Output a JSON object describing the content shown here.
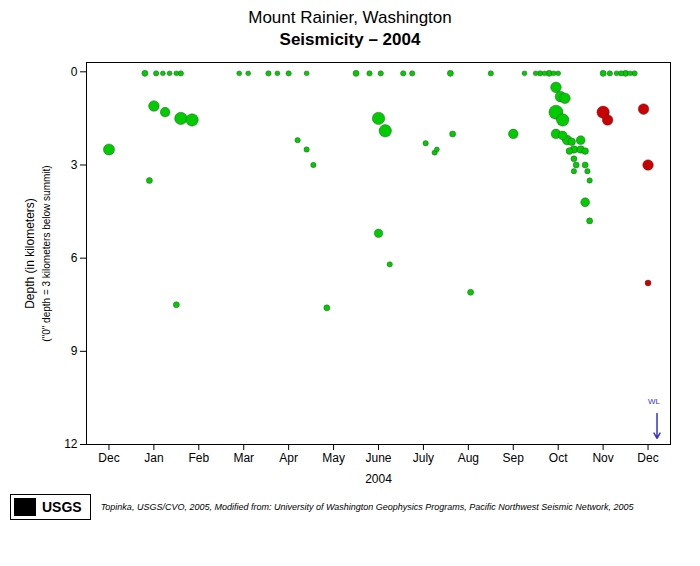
{
  "chart_data": {
    "type": "scatter",
    "title": "Mount Rainier, Washington",
    "subtitle": "Seismicity – 2004",
    "xlabel": "2004",
    "ylabel": [
      "Depth (in kilometers)",
      "(\"0\" depth = 3 kilometers below summit)"
    ],
    "caption": "Topinka, USGS/CVO, 2005, Modified from: University of Washington Geophysics Programs, Pacific Northwest Seismic Network, 2005",
    "xlim": [
      0,
      13
    ],
    "ylim": [
      12,
      -0.3
    ],
    "xticks": [
      {
        "value": 0.5,
        "label": "Dec"
      },
      {
        "value": 1.5,
        "label": "Jan"
      },
      {
        "value": 2.5,
        "label": "Feb"
      },
      {
        "value": 3.5,
        "label": "Mar"
      },
      {
        "value": 4.5,
        "label": "Apr"
      },
      {
        "value": 5.5,
        "label": "May"
      },
      {
        "value": 6.5,
        "label": "June"
      },
      {
        "value": 7.5,
        "label": "July"
      },
      {
        "value": 8.5,
        "label": "Aug"
      },
      {
        "value": 9.5,
        "label": "Sep"
      },
      {
        "value": 10.5,
        "label": "Oct"
      },
      {
        "value": 11.5,
        "label": "Nov"
      },
      {
        "value": 12.5,
        "label": "Dec"
      }
    ],
    "yticks": [
      0,
      3,
      6,
      9,
      12
    ],
    "grid": false,
    "series": [
      {
        "color": "#00CC00",
        "x": [
          0.5,
          1.3,
          1.55,
          1.7,
          1.85,
          2.0,
          2.1,
          1.5,
          1.75,
          2.1,
          2.35,
          1.4,
          2.0,
          3.4,
          3.6,
          4.05,
          4.25,
          4.5,
          4.9,
          4.7,
          4.9,
          5.05,
          5.35,
          6.0,
          6.3,
          6.55,
          6.5,
          6.65,
          6.5,
          6.75,
          7.05,
          7.25,
          7.55,
          7.75,
          7.8,
          8.1,
          8.15,
          8.55,
          9.0,
          9.5,
          9.75,
          10.0,
          10.1,
          10.2,
          10.3,
          10.4,
          10.5,
          10.45,
          10.55,
          10.65,
          10.45,
          10.6,
          10.45,
          10.6,
          10.7,
          10.8,
          10.85,
          10.75,
          10.85,
          10.9,
          10.85,
          11.0,
          11.0,
          11.1,
          11.1,
          11.15,
          11.2,
          11.1,
          11.2,
          11.5,
          11.65,
          11.8,
          11.9,
          12.0,
          12.1,
          12.2
        ],
        "y": [
          2.5,
          0.05,
          0.05,
          0.05,
          0.05,
          0.05,
          0.05,
          1.1,
          1.3,
          1.5,
          1.55,
          3.5,
          7.5,
          0.05,
          0.05,
          0.05,
          0.05,
          0.05,
          0.05,
          2.2,
          2.5,
          3.0,
          7.6,
          0.05,
          0.05,
          0.05,
          1.5,
          1.9,
          5.2,
          6.2,
          0.05,
          0.05,
          2.3,
          2.6,
          2.5,
          0.05,
          2.0,
          7.1,
          0.05,
          2.0,
          0.05,
          0.05,
          0.05,
          0.05,
          0.05,
          0.05,
          0.05,
          0.5,
          0.8,
          0.85,
          1.3,
          1.55,
          2.0,
          2.05,
          2.2,
          2.25,
          2.5,
          2.55,
          2.8,
          3.0,
          3.2,
          2.2,
          2.5,
          2.55,
          3.0,
          3.2,
          3.5,
          4.2,
          4.8,
          0.05,
          0.05,
          0.05,
          0.05,
          0.05,
          0.05,
          0.05
        ],
        "sizes": [
          60,
          18,
          14,
          12,
          12,
          12,
          14,
          55,
          45,
          75,
          75,
          18,
          18,
          12,
          12,
          14,
          12,
          14,
          12,
          14,
          14,
          14,
          18,
          18,
          14,
          14,
          75,
          75,
          35,
          14,
          14,
          14,
          14,
          14,
          12,
          18,
          18,
          18,
          14,
          45,
          12,
          12,
          14,
          12,
          18,
          12,
          12,
          55,
          55,
          55,
          95,
          75,
          45,
          38,
          45,
          28,
          28,
          22,
          18,
          18,
          14,
          38,
          28,
          22,
          18,
          14,
          14,
          38,
          18,
          18,
          14,
          12,
          14,
          18,
          12,
          14
        ]
      },
      {
        "color": "#CC0000",
        "x": [
          11.5,
          11.6,
          12.4,
          12.5,
          12.5
        ],
        "y": [
          1.3,
          1.55,
          1.2,
          3.0,
          6.8
        ],
        "sizes": [
          75,
          55,
          55,
          55,
          18
        ]
      }
    ],
    "annotations": [
      {
        "text": "WL",
        "x": 12.63,
        "y": 10.7,
        "color": "#3333CC",
        "arrow": {
          "x": 12.7,
          "y1": 11.0,
          "y2": 11.8
        }
      },
      {
        "text": "USGS"
      }
    ]
  }
}
